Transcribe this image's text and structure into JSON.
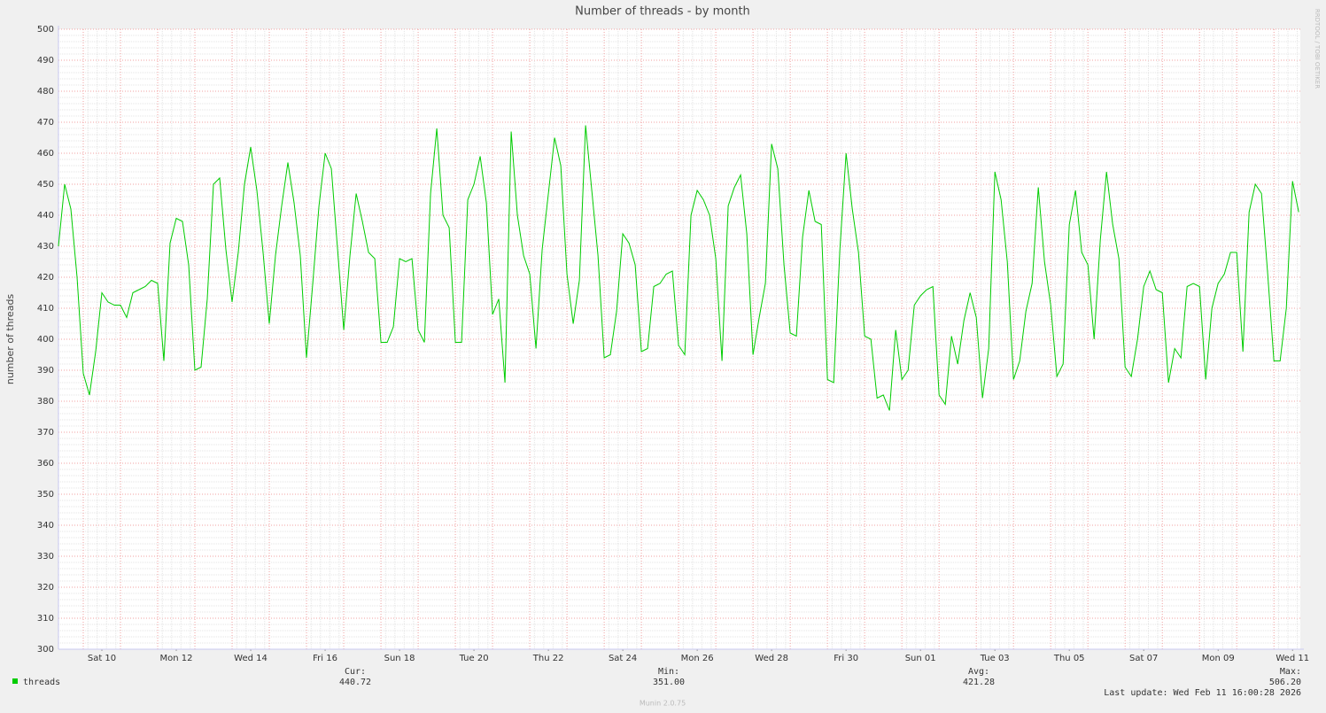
{
  "chart_data": {
    "type": "line",
    "title": "Number of threads - by month",
    "y_label": "number of threads",
    "side_text": "RRDTOOL / TOBI OETIKER",
    "x": [
      0,
      4,
      8,
      12,
      16,
      20,
      24,
      28,
      32,
      36,
      40,
      44,
      48,
      52,
      56,
      60,
      64,
      68,
      72,
      76,
      80,
      84,
      88,
      92,
      96,
      100,
      104,
      108,
      112,
      116,
      120,
      124,
      128,
      132,
      136,
      140,
      144,
      148,
      152,
      156,
      160,
      164,
      168,
      172,
      176,
      180,
      184,
      188,
      192,
      196,
      200,
      204,
      208,
      212,
      216,
      220,
      224,
      228,
      232,
      236,
      240,
      244,
      248,
      252,
      256,
      260,
      264,
      268,
      272,
      276,
      280,
      284,
      288,
      292,
      296,
      300,
      304,
      308,
      312,
      316,
      320,
      324,
      328,
      332,
      336,
      340,
      344,
      348,
      352,
      356,
      360,
      364,
      368,
      372,
      376,
      380,
      384,
      388,
      392,
      396,
      400,
      404,
      408,
      412,
      416,
      420,
      424,
      428,
      432,
      436,
      440,
      444,
      448,
      452,
      456,
      460,
      464,
      468,
      472,
      476,
      480,
      484,
      488,
      492,
      496,
      500,
      504,
      508,
      512,
      516,
      520,
      524,
      528,
      532,
      536,
      540,
      544,
      548,
      552,
      556,
      560,
      564,
      568,
      572,
      576,
      580,
      584,
      588,
      592,
      596,
      600,
      604,
      608,
      612,
      616,
      620,
      624,
      628,
      632,
      636,
      640,
      644,
      648,
      652,
      656,
      660,
      664,
      668,
      672,
      676,
      680,
      684,
      688,
      692,
      696,
      700,
      704,
      708,
      712,
      716,
      720,
      724,
      728,
      732,
      736,
      740,
      744,
      748,
      752,
      756,
      760,
      764,
      768,
      772,
      776,
      780,
      784,
      788,
      792,
      796,
      800
    ],
    "series": [
      {
        "name": "threads",
        "color": "#00cc00",
        "values": [
          430,
          450,
          442,
          420,
          389,
          382,
          396,
          415,
          412,
          411,
          411,
          407,
          415,
          416,
          417,
          419,
          418,
          393,
          431,
          439,
          438,
          424,
          390,
          391,
          413,
          450,
          452,
          429,
          412,
          428,
          450,
          462,
          448,
          428,
          405,
          427,
          443,
          457,
          444,
          427,
          394,
          418,
          443,
          460,
          455,
          429,
          403,
          427,
          447,
          438,
          428,
          426,
          399,
          399,
          404,
          426,
          425,
          426,
          403,
          399,
          447,
          468,
          440,
          436,
          399,
          399,
          445,
          450,
          459,
          444,
          408,
          413,
          386,
          467,
          440,
          427,
          421,
          397,
          429,
          447,
          465,
          456,
          421,
          405,
          419,
          469,
          448,
          427,
          394,
          395,
          409,
          434,
          431,
          424,
          396,
          397,
          417,
          418,
          421,
          422,
          398,
          395,
          440,
          448,
          445,
          440,
          426,
          393,
          443,
          449,
          453,
          434,
          395,
          407,
          418,
          463,
          455,
          424,
          402,
          401,
          433,
          448,
          438,
          437,
          387,
          386,
          429,
          460,
          442,
          428,
          401,
          400,
          381,
          382,
          377,
          403,
          387,
          390,
          411,
          414,
          416,
          417,
          382,
          379,
          401,
          392,
          406,
          415,
          407,
          381,
          397,
          454,
          445,
          425,
          387,
          393,
          409,
          418,
          449,
          425,
          411,
          388,
          392,
          437,
          448,
          428,
          424,
          400,
          432,
          454,
          437,
          426,
          391,
          388,
          400,
          417,
          422,
          416,
          415,
          386,
          397,
          394,
          417,
          418,
          417,
          387,
          410,
          418,
          421,
          428,
          428,
          396,
          441,
          450,
          447,
          421,
          393,
          393,
          410,
          451,
          441
        ]
      }
    ],
    "xlim": [
      0,
      801
    ],
    "xticks": [
      {
        "value": 28,
        "label": "Sat 10"
      },
      {
        "value": 76,
        "label": "Mon 12"
      },
      {
        "value": 124,
        "label": "Wed 14"
      },
      {
        "value": 172,
        "label": "Fri 16"
      },
      {
        "value": 220,
        "label": "Sun 18"
      },
      {
        "value": 268,
        "label": "Tue 20"
      },
      {
        "value": 316,
        "label": "Thu 22"
      },
      {
        "value": 364,
        "label": "Sat 24"
      },
      {
        "value": 412,
        "label": "Mon 26"
      },
      {
        "value": 460,
        "label": "Wed 28"
      },
      {
        "value": 508,
        "label": "Fri 30"
      },
      {
        "value": 556,
        "label": "Sun 01"
      },
      {
        "value": 604,
        "label": "Tue 03"
      },
      {
        "value": 652,
        "label": "Thu 05"
      },
      {
        "value": 700,
        "label": "Sat 07"
      },
      {
        "value": 748,
        "label": "Mon 09"
      },
      {
        "value": 796,
        "label": "Wed 11"
      }
    ],
    "ylim": [
      300,
      500
    ],
    "yticks": [
      300,
      310,
      320,
      330,
      340,
      350,
      360,
      370,
      380,
      390,
      400,
      410,
      420,
      430,
      440,
      450,
      460,
      470,
      480,
      490,
      500
    ],
    "grid": true,
    "stats": [
      {
        "label": "Cur:",
        "value": "440.72"
      },
      {
        "label": "Min:",
        "value": "351.00"
      },
      {
        "label": "Avg:",
        "value": "421.28"
      },
      {
        "label": "Max:",
        "value": "506.20"
      }
    ],
    "last_update": "Last update: Wed Feb 11 16:00:28 2026",
    "footer": "Munin 2.0.75"
  }
}
